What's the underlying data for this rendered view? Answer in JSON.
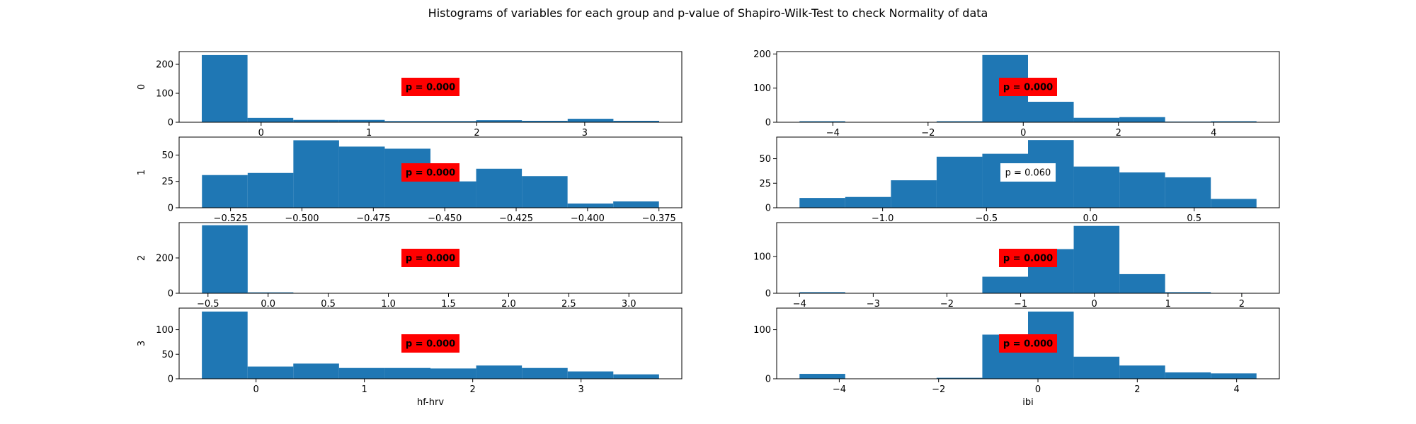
{
  "figure": {
    "suptitle": "Histograms of variables for each group and p-value of Shapiro-Wilk-Test to check Normality of data"
  },
  "colors": {
    "bar": "#1f77b4",
    "sig_box": "#ff0000",
    "nonsig_box": "#ffffff"
  },
  "chart_data": [
    {
      "type": "bar",
      "histogram": true,
      "variable": "hf-hrv",
      "group": "0",
      "ylabel": "0",
      "xlabel": "",
      "bin_edges": [
        -0.55,
        -0.126,
        0.298,
        0.722,
        1.146,
        1.57,
        1.994,
        2.418,
        2.842,
        3.266,
        3.69
      ],
      "values": [
        232,
        15,
        8,
        8,
        4,
        4,
        7,
        5,
        12,
        5
      ],
      "xlim": [
        -0.76,
        3.9
      ],
      "ylim": [
        0,
        244
      ],
      "xticks": [
        0,
        1,
        2,
        3
      ],
      "xtick_labels": [
        "0",
        "1",
        "2",
        "3"
      ],
      "yticks": [
        0,
        100,
        200
      ],
      "ytick_labels": [
        "0",
        "100",
        "200"
      ],
      "annotation": {
        "text": "p = 0.000",
        "significant": true
      }
    },
    {
      "type": "bar",
      "histogram": true,
      "variable": "ibi",
      "group": "0",
      "ylabel": "",
      "xlabel": "",
      "bin_edges": [
        -4.7,
        -3.74,
        -2.78,
        -1.82,
        -0.86,
        0.1,
        1.06,
        2.02,
        2.98,
        3.94,
        4.9
      ],
      "values": [
        3,
        0,
        0,
        3,
        197,
        60,
        13,
        15,
        2,
        3
      ],
      "xlim": [
        -5.18,
        5.38
      ],
      "ylim": [
        0,
        207
      ],
      "xticks": [
        -4,
        -2,
        0,
        2,
        4
      ],
      "xtick_labels": [
        "−4",
        "−2",
        "0",
        "2",
        "4"
      ],
      "yticks": [
        0,
        100,
        200
      ],
      "ytick_labels": [
        "0",
        "100",
        "200"
      ],
      "annotation": {
        "text": "p = 0.000",
        "significant": true
      }
    },
    {
      "type": "bar",
      "histogram": true,
      "variable": "hf-hrv",
      "group": "1",
      "ylabel": "1",
      "xlabel": "",
      "bin_edges": [
        -0.535,
        -0.519,
        -0.503,
        -0.487,
        -0.471,
        -0.455,
        -0.439,
        -0.423,
        -0.407,
        -0.391,
        -0.375
      ],
      "values": [
        31,
        33,
        64,
        58,
        56,
        25,
        37,
        30,
        4,
        6
      ],
      "xlim": [
        -0.543,
        -0.367
      ],
      "ylim": [
        0,
        67
      ],
      "xticks": [
        -0.525,
        -0.5,
        -0.475,
        -0.45,
        -0.425,
        -0.4,
        -0.375
      ],
      "xtick_labels": [
        "−0.525",
        "−0.500",
        "−0.475",
        "−0.450",
        "−0.425",
        "−0.400",
        "−0.375"
      ],
      "yticks": [
        0,
        25,
        50
      ],
      "ytick_labels": [
        "0",
        "25",
        "50"
      ],
      "annotation": {
        "text": "p = 0.000",
        "significant": true
      }
    },
    {
      "type": "bar",
      "histogram": true,
      "variable": "ibi",
      "group": "1",
      "ylabel": "",
      "xlabel": "",
      "bin_edges": [
        -1.4,
        -1.18,
        -0.96,
        -0.74,
        -0.52,
        -0.3,
        -0.08,
        0.14,
        0.36,
        0.58,
        0.8
      ],
      "values": [
        10,
        11,
        28,
        52,
        55,
        69,
        42,
        36,
        31,
        9
      ],
      "xlim": [
        -1.51,
        0.91
      ],
      "ylim": [
        0,
        72
      ],
      "xticks": [
        -1.0,
        -0.5,
        0.0,
        0.5
      ],
      "xtick_labels": [
        "−1.0",
        "−0.5",
        "0.0",
        "0.5"
      ],
      "yticks": [
        0,
        25,
        50
      ],
      "ytick_labels": [
        "0",
        "25",
        "50"
      ],
      "annotation": {
        "text": "p = 0.060",
        "significant": false
      }
    },
    {
      "type": "bar",
      "histogram": true,
      "variable": "hf-hrv",
      "group": "2",
      "ylabel": "2",
      "xlabel": "",
      "bin_edges": [
        -0.55,
        -0.17,
        0.21,
        0.59,
        0.97,
        1.35,
        1.73,
        2.11,
        2.49,
        2.87,
        3.25
      ],
      "values": [
        385,
        5,
        0,
        0,
        0,
        0,
        0,
        0,
        2,
        2
      ],
      "xlim": [
        -0.74,
        3.44
      ],
      "ylim": [
        0,
        400
      ],
      "xticks": [
        -0.5,
        0.0,
        0.5,
        1.0,
        1.5,
        2.0,
        2.5,
        3.0
      ],
      "xtick_labels": [
        "−0.5",
        "0.0",
        "0.5",
        "1.0",
        "1.5",
        "2.0",
        "2.5",
        "3.0"
      ],
      "yticks": [
        0,
        200
      ],
      "ytick_labels": [
        "0",
        "200"
      ],
      "annotation": {
        "text": "p = 0.000",
        "significant": true
      }
    },
    {
      "type": "bar",
      "histogram": true,
      "variable": "ibi",
      "group": "2",
      "ylabel": "",
      "xlabel": "",
      "bin_edges": [
        -4.0,
        -3.38,
        -2.76,
        -2.14,
        -1.52,
        -0.9,
        -0.28,
        0.34,
        0.96,
        1.58,
        2.2
      ],
      "values": [
        3,
        0,
        0,
        0,
        45,
        120,
        183,
        52,
        3,
        1
      ],
      "xlim": [
        -4.31,
        2.51
      ],
      "ylim": [
        0,
        192
      ],
      "xticks": [
        -4,
        -3,
        -2,
        -1,
        0,
        1,
        2
      ],
      "xtick_labels": [
        "−4",
        "−3",
        "−2",
        "−1",
        "0",
        "1",
        "2"
      ],
      "yticks": [
        0,
        100
      ],
      "ytick_labels": [
        "0",
        "100"
      ],
      "annotation": {
        "text": "p = 0.000",
        "significant": true
      }
    },
    {
      "type": "bar",
      "histogram": true,
      "variable": "hf-hrv",
      "group": "3",
      "ylabel": "3",
      "xlabel": "hf-hrv",
      "bin_edges": [
        -0.5,
        -0.078,
        0.344,
        0.766,
        1.188,
        1.61,
        2.032,
        2.454,
        2.876,
        3.298,
        3.72
      ],
      "values": [
        137,
        25,
        31,
        22,
        22,
        21,
        27,
        22,
        15,
        9
      ],
      "xlim": [
        -0.71,
        3.93
      ],
      "ylim": [
        0,
        144
      ],
      "xticks": [
        0,
        1,
        2,
        3
      ],
      "xtick_labels": [
        "0",
        "1",
        "2",
        "3"
      ],
      "yticks": [
        0,
        50,
        100
      ],
      "ytick_labels": [
        "0",
        "50",
        "100"
      ],
      "annotation": {
        "text": "p = 0.000",
        "significant": true
      }
    },
    {
      "type": "bar",
      "histogram": true,
      "variable": "ibi",
      "group": "3",
      "ylabel": "",
      "xlabel": "ibi",
      "bin_edges": [
        -4.8,
        -3.88,
        -2.96,
        -2.04,
        -1.12,
        -0.2,
        0.72,
        1.64,
        2.56,
        3.48,
        4.4
      ],
      "values": [
        10,
        0,
        0,
        2,
        90,
        137,
        45,
        27,
        13,
        11
      ],
      "xlim": [
        -5.26,
        4.86
      ],
      "ylim": [
        0,
        144
      ],
      "xticks": [
        -4,
        -2,
        0,
        2,
        4
      ],
      "xtick_labels": [
        "−4",
        "−2",
        "0",
        "2",
        "4"
      ],
      "yticks": [
        0,
        100
      ],
      "ytick_labels": [
        "0",
        "100"
      ],
      "annotation": {
        "text": "p = 0.000",
        "significant": true
      }
    }
  ]
}
